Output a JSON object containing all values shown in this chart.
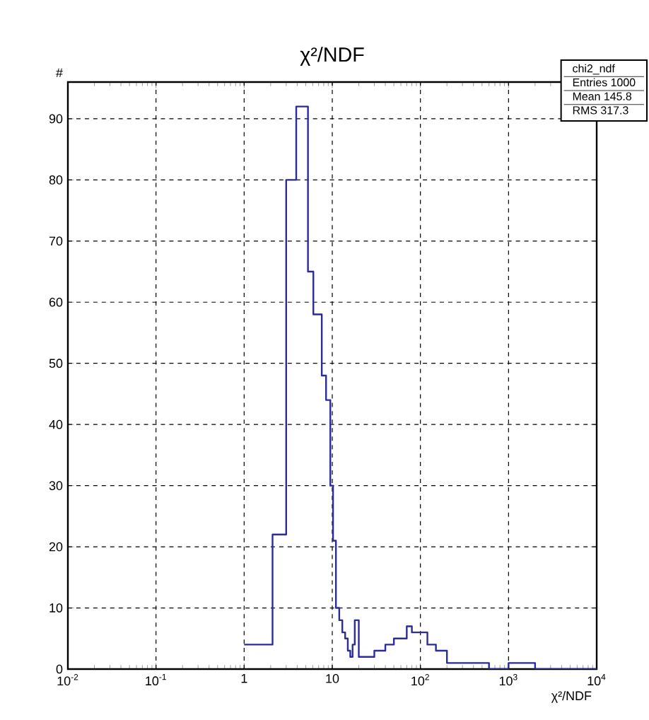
{
  "chart_data": {
    "type": "histogram",
    "title": "χ²/NDF",
    "xlabel": "χ²/NDF",
    "ylabel": "#",
    "bins": [
      1,
      2.1,
      3.0,
      3.9,
      5.3,
      6.1,
      7.6,
      8.5,
      9.5,
      10.2,
      11,
      12,
      13,
      14,
      15,
      16,
      17,
      18,
      20,
      22,
      30,
      40,
      50,
      60,
      70,
      80,
      100,
      120,
      150,
      200,
      300,
      600,
      1000,
      1500,
      2000,
      10000
    ],
    "values": [
      4,
      22,
      80,
      92,
      65,
      58,
      48,
      44,
      30,
      21,
      10,
      8,
      6,
      5,
      3,
      2,
      4,
      8,
      2,
      2,
      3,
      4,
      5,
      5,
      7,
      6,
      6,
      4,
      3,
      1,
      1,
      0,
      1,
      1,
      0
    ],
    "color": "#2b2b99",
    "log": "x",
    "grid": true,
    "xlim": [
      0.01,
      10000
    ],
    "ylim": [
      0,
      96
    ],
    "xticks": [
      {
        "value": 0.01,
        "label": "10$^{-2}$"
      },
      {
        "value": 0.1,
        "label": "10$^{-1}$"
      },
      1,
      10,
      {
        "value": 100,
        "label": "10$^{2}$"
      },
      {
        "value": 1000,
        "label": "10$^{3}$"
      },
      {
        "value": 10000,
        "label": "10$^{4}$"
      }
    ],
    "yticks": [
      0,
      10,
      20,
      30,
      40,
      50,
      60,
      70,
      80,
      90
    ],
    "annotations": [
      "chi2_ndf",
      "Entries  1000",
      "Mean  145.8",
      "RMS  317.3"
    ]
  }
}
